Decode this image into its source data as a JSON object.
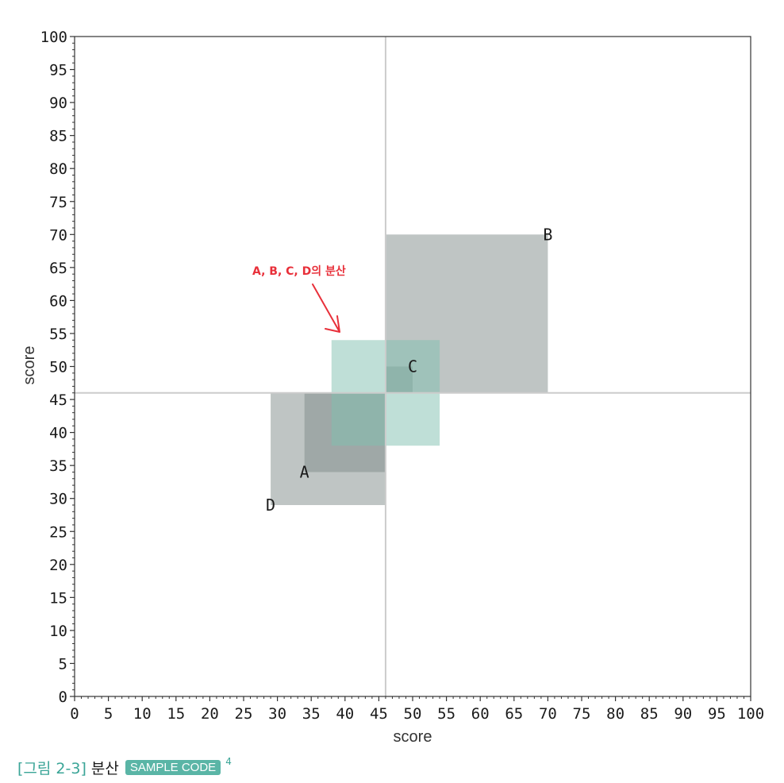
{
  "chart_data": {
    "type": "scatter",
    "xlabel": "score",
    "ylabel": "score",
    "xlim": [
      0,
      100
    ],
    "ylim": [
      0,
      100
    ],
    "x_ticks": [
      "0",
      "5",
      "10",
      "15",
      "20",
      "25",
      "30",
      "35",
      "40",
      "45",
      "50",
      "55",
      "60",
      "65",
      "70",
      "75",
      "80",
      "85",
      "90",
      "95",
      "100"
    ],
    "y_ticks": [
      "0",
      "5",
      "10",
      "15",
      "20",
      "25",
      "30",
      "35",
      "40",
      "45",
      "50",
      "55",
      "60",
      "65",
      "70",
      "75",
      "80",
      "85",
      "90",
      "95",
      "100"
    ],
    "mean": {
      "x": 46,
      "y": 46
    },
    "boxes": [
      {
        "name": "A",
        "x": 34,
        "y": 34,
        "color": "#7f8b8a",
        "opacity": 0.5
      },
      {
        "name": "B",
        "x": 70,
        "y": 70,
        "color": "#7f8b8a",
        "opacity": 0.5
      },
      {
        "name": "C",
        "x": 50,
        "y": 50,
        "color": "#7f8b8a",
        "opacity": 0.5
      },
      {
        "name": "D",
        "x": 29,
        "y": 29,
        "color": "#7f8b8a",
        "opacity": 0.5
      }
    ],
    "variance_box": {
      "x": [
        38,
        54
      ],
      "y": [
        38,
        54
      ],
      "color": "#7fbfb0",
      "opacity": 0.5
    },
    "annotation": {
      "text": "A, B, C, D의 분산",
      "color": "#e8303a"
    },
    "mean_line_color": "#cccccc"
  },
  "caption": {
    "figure_label": "[그림 2-3]",
    "title": "분산",
    "badge": "SAMPLE CODE",
    "badge_number": "4"
  }
}
